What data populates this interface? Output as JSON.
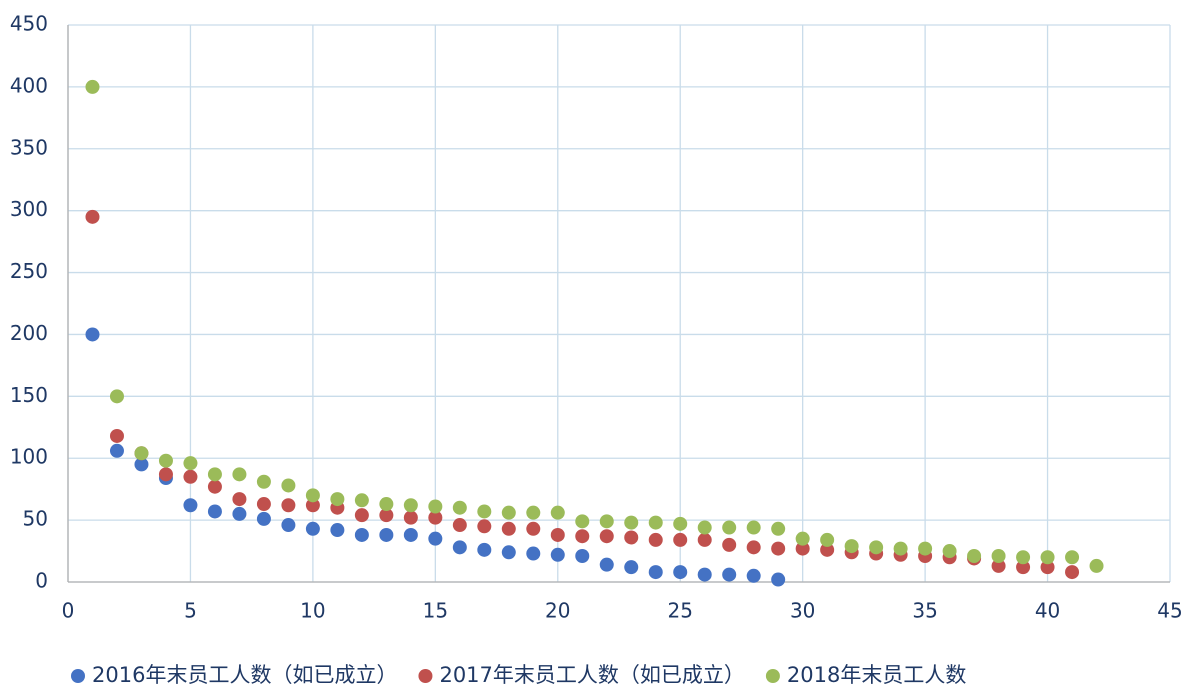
{
  "chart_data": {
    "type": "scatter",
    "xlim": [
      0,
      45
    ],
    "xticks": [
      0,
      5,
      10,
      15,
      20,
      25,
      30,
      35,
      40,
      45
    ],
    "ylim": [
      0,
      450
    ],
    "yticks": [
      0,
      50,
      100,
      150,
      200,
      250,
      300,
      350,
      400,
      450
    ],
    "grid": true,
    "legend": "bottom",
    "series": [
      {
        "name": "2016年末员工人数（如已成立）",
        "color": "#4472c4",
        "x": [
          1,
          2,
          3,
          4,
          5,
          6,
          7,
          8,
          9,
          10,
          11,
          12,
          13,
          14,
          15,
          16,
          17,
          18,
          19,
          20,
          21,
          22,
          23,
          24,
          25,
          26,
          27,
          28,
          29
        ],
        "values": [
          200,
          106,
          95,
          84,
          62,
          57,
          55,
          51,
          46,
          43,
          42,
          38,
          38,
          38,
          35,
          28,
          26,
          24,
          23,
          22,
          21,
          14,
          12,
          8,
          8,
          6,
          6,
          5,
          2
        ]
      },
      {
        "name": "2017年末员工人数（如已成立）",
        "color": "#c0504d",
        "x": [
          1,
          2,
          3,
          4,
          5,
          6,
          7,
          8,
          9,
          10,
          11,
          12,
          13,
          14,
          15,
          16,
          17,
          18,
          19,
          20,
          21,
          22,
          23,
          24,
          25,
          26,
          27,
          28,
          29,
          30,
          31,
          32,
          33,
          34,
          35,
          36,
          37,
          38,
          39,
          40,
          41
        ],
        "values": [
          295,
          118,
          104,
          87,
          85,
          77,
          67,
          63,
          62,
          62,
          60,
          54,
          54,
          52,
          52,
          46,
          45,
          43,
          43,
          38,
          37,
          37,
          36,
          34,
          34,
          34,
          30,
          28,
          27,
          27,
          26,
          24,
          23,
          22,
          21,
          20,
          19,
          13,
          12,
          12,
          8
        ]
      },
      {
        "name": "2018年末员工人数",
        "color": "#9bbb59",
        "x": [
          1,
          2,
          3,
          4,
          5,
          6,
          7,
          8,
          9,
          10,
          11,
          12,
          13,
          14,
          15,
          16,
          17,
          18,
          19,
          20,
          21,
          22,
          23,
          24,
          25,
          26,
          27,
          28,
          29,
          30,
          31,
          32,
          33,
          34,
          35,
          36,
          37,
          38,
          39,
          40,
          41,
          42
        ],
        "values": [
          400,
          150,
          104,
          98,
          96,
          87,
          87,
          81,
          78,
          70,
          67,
          66,
          63,
          62,
          61,
          60,
          57,
          56,
          56,
          56,
          49,
          49,
          48,
          48,
          47,
          44,
          44,
          44,
          43,
          35,
          34,
          29,
          28,
          27,
          27,
          25,
          21,
          21,
          20,
          20,
          20,
          13
        ]
      }
    ]
  }
}
